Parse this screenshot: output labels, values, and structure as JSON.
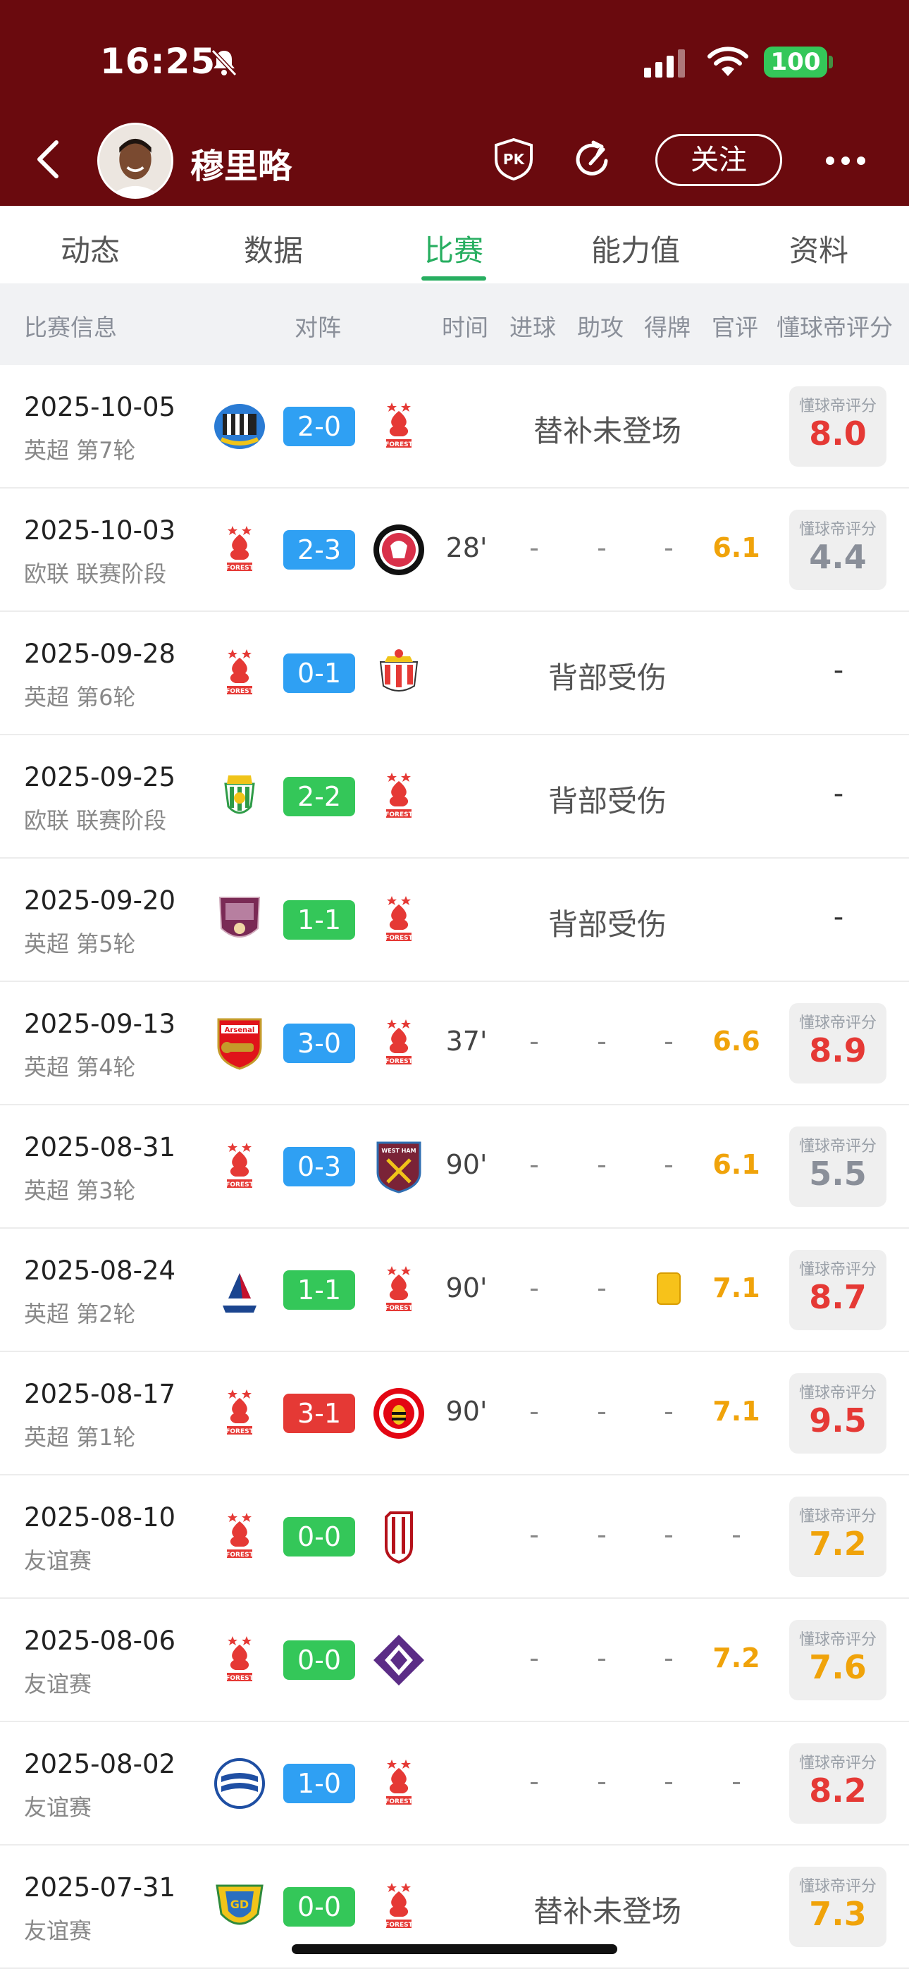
{
  "status": {
    "time": "16:25",
    "battery": "100"
  },
  "header": {
    "player_name": "穆里略",
    "pk_icon": "PK",
    "follow_label": "关注"
  },
  "tabs": [
    "动态",
    "数据",
    "比赛",
    "能力值",
    "资料"
  ],
  "active_tab": 2,
  "columns": [
    "比赛信息",
    "对阵",
    "时间",
    "进球",
    "助攻",
    "得牌",
    "官评",
    "懂球帝评分"
  ],
  "rating_label": "懂球帝评分",
  "colors": {
    "topbar": "#6a0a0e",
    "accent": "#27ae60",
    "win": "#34c759",
    "draw_blue": "#2fa0f3",
    "loss": "#e53935",
    "rating_red": "#e53935",
    "rating_orange": "#f0a30a",
    "rating_gray": "#8a8f99"
  },
  "matches": [
    {
      "date": "2025-10-05",
      "comp": "英超 第7轮",
      "home": "newcastle",
      "away": "forest",
      "score": "2-0",
      "score_color": "blue",
      "note": "替补未登场",
      "rating": "8.0",
      "rating_color": "red"
    },
    {
      "date": "2025-10-03",
      "comp": "欧联 联赛阶段",
      "home": "forest",
      "away": "midtjylland",
      "score": "2-3",
      "score_color": "blue",
      "minutes": "28'",
      "goals": "-",
      "assists": "-",
      "cards": "-",
      "official": "6.1",
      "rating": "4.4",
      "rating_color": "gray"
    },
    {
      "date": "2025-09-28",
      "comp": "英超 第6轮",
      "home": "forest",
      "away": "sunderland",
      "score": "0-1",
      "score_color": "blue",
      "note": "背部受伤",
      "rating": "-"
    },
    {
      "date": "2025-09-25",
      "comp": "欧联 联赛阶段",
      "home": "betis",
      "away": "forest",
      "score": "2-2",
      "score_color": "green",
      "note": "背部受伤",
      "rating": "-"
    },
    {
      "date": "2025-09-20",
      "comp": "英超 第5轮",
      "home": "burnley",
      "away": "forest",
      "score": "1-1",
      "score_color": "green",
      "note": "背部受伤",
      "rating": "-"
    },
    {
      "date": "2025-09-13",
      "comp": "英超 第4轮",
      "home": "arsenal",
      "away": "forest",
      "score": "3-0",
      "score_color": "blue",
      "minutes": "37'",
      "goals": "-",
      "assists": "-",
      "cards": "-",
      "official": "6.6",
      "rating": "8.9",
      "rating_color": "red"
    },
    {
      "date": "2025-08-31",
      "comp": "英超 第3轮",
      "home": "forest",
      "away": "westham",
      "score": "0-3",
      "score_color": "blue",
      "minutes": "90'",
      "goals": "-",
      "assists": "-",
      "cards": "-",
      "official": "6.1",
      "rating": "5.5",
      "rating_color": "gray"
    },
    {
      "date": "2025-08-24",
      "comp": "英超 第2轮",
      "home": "palace",
      "away": "forest",
      "score": "1-1",
      "score_color": "green",
      "minutes": "90'",
      "goals": "-",
      "assists": "-",
      "cards": "yellow",
      "official": "7.1",
      "rating": "8.7",
      "rating_color": "red"
    },
    {
      "date": "2025-08-17",
      "comp": "英超 第1轮",
      "home": "forest",
      "away": "brentford",
      "score": "3-1",
      "score_color": "red",
      "minutes": "90'",
      "goals": "-",
      "assists": "-",
      "cards": "-",
      "official": "7.1",
      "rating": "9.5",
      "rating_color": "red"
    },
    {
      "date": "2025-08-10",
      "comp": "友谊赛",
      "home": "forest",
      "away": "lanus",
      "score": "0-0",
      "score_color": "green",
      "minutes": "",
      "goals": "-",
      "assists": "-",
      "cards": "-",
      "official": "-",
      "rating": "7.2",
      "rating_color": "orange"
    },
    {
      "date": "2025-08-06",
      "comp": "友谊赛",
      "home": "forest",
      "away": "fiorentina",
      "score": "0-0",
      "score_color": "green",
      "minutes": "",
      "goals": "-",
      "assists": "-",
      "cards": "-",
      "official": "7.2",
      "rating": "7.6",
      "rating_color": "orange"
    },
    {
      "date": "2025-08-02",
      "comp": "友谊赛",
      "home": "birmingham",
      "away": "forest",
      "score": "1-0",
      "score_color": "blue",
      "minutes": "",
      "goals": "-",
      "assists": "-",
      "cards": "-",
      "official": "-",
      "rating": "8.2",
      "rating_color": "red"
    },
    {
      "date": "2025-07-31",
      "comp": "友谊赛",
      "home": "estoril",
      "away": "forest",
      "score": "0-0",
      "score_color": "green",
      "note": "替补未登场",
      "rating": "7.3",
      "rating_color": "orange"
    }
  ]
}
